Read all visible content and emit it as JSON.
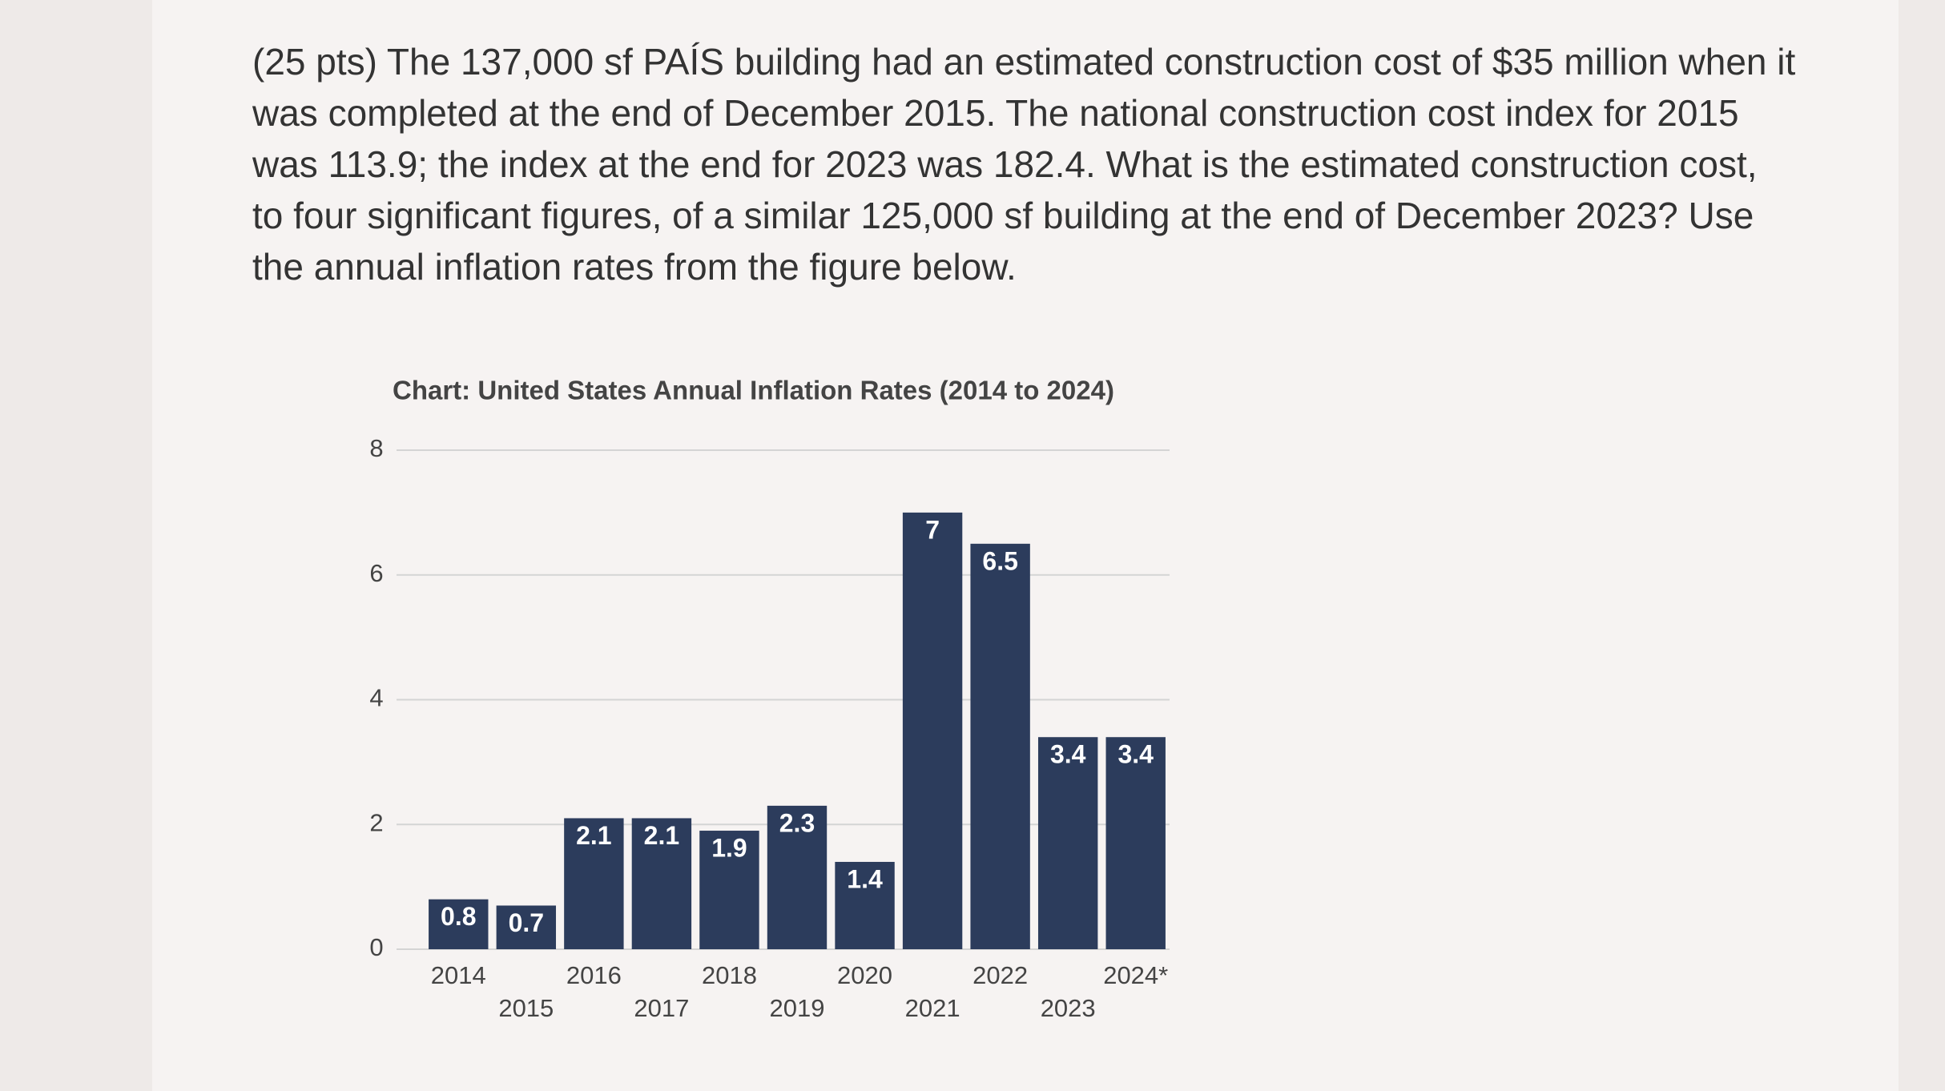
{
  "question": {
    "lines": [
      "(25 pts) The 137,000 sf PAÍS building had an estimated construction cost of $35 million when it",
      "was completed at the end of December 2015. The national construction cost index for 2015",
      "was 113.9; the index at the end for 2023 was 182.4. What is the estimated construction cost,",
      "to four significant figures, of a similar 125,000 sf building at the end of December 2023? Use",
      "the annual inflation rates from the figure below."
    ]
  },
  "chart_data": {
    "type": "bar",
    "title": "Chart: United States Annual Inflation Rates (2014 to 2024)",
    "categories": [
      "2014",
      "2015",
      "2016",
      "2017",
      "2018",
      "2019",
      "2020",
      "2021",
      "2022",
      "2023",
      "2024*"
    ],
    "values": [
      0.8,
      0.7,
      2.1,
      2.1,
      1.9,
      2.3,
      1.4,
      7,
      6.5,
      3.4,
      3.4
    ],
    "color": "#2c3c5c",
    "ylim": [
      0,
      8
    ],
    "yticks": [
      0,
      2,
      4,
      6,
      8
    ],
    "grid": true
  }
}
